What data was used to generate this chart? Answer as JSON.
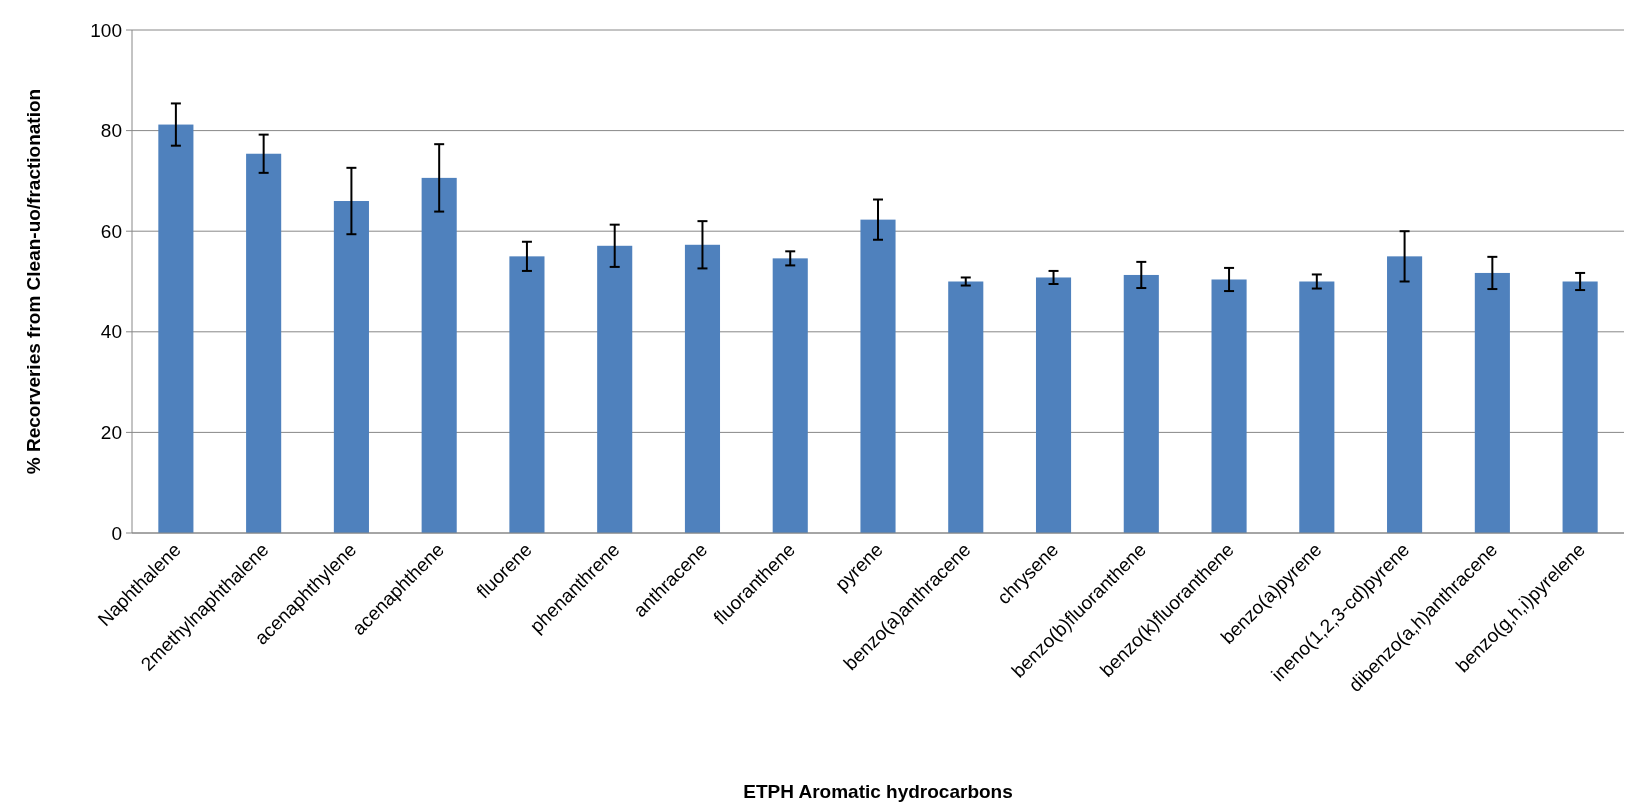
{
  "chart_data": {
    "type": "bar",
    "xlabel": "ETPH Aromatic hydrocarbons",
    "ylabel": "% Recorveries from Clean-uo/fractionation",
    "categories": [
      "Naphthalene",
      "2methylnaphthalene",
      "acenaphthylene",
      "acenaphthene",
      "fluorene",
      "phenanthrene",
      "anthracene",
      "fluoranthene",
      "pyrene",
      "benzo(a)anthracene",
      "chrysene",
      "benzo(b)fluoranthene",
      "benzo(k)fluoranthene",
      "benzo(a)pyrene",
      "ineno(1,2,3-cd)pyrene",
      "dibenzo(a,h)anthracene",
      "benzo(g,h,i)pyrelene"
    ],
    "values": [
      81.2,
      75.4,
      66.0,
      70.6,
      55.0,
      57.1,
      57.3,
      54.6,
      62.3,
      50.0,
      50.8,
      51.3,
      50.4,
      50.0,
      55.0,
      51.7,
      50.0
    ],
    "errors": [
      4.2,
      3.8,
      6.6,
      6.7,
      2.9,
      4.2,
      4.7,
      1.4,
      4.0,
      0.8,
      1.3,
      2.6,
      2.3,
      1.4,
      5.0,
      3.2,
      1.7
    ],
    "color": "#4f81bd",
    "ylim": [
      0,
      100
    ],
    "yticks": [
      0,
      20,
      40,
      60,
      80,
      100
    ],
    "grid": "y"
  }
}
